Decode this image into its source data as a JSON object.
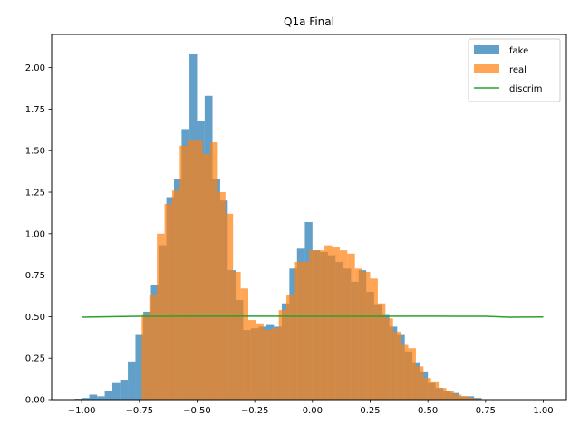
{
  "chart_data": {
    "type": "histogram",
    "title": "Q1a Final",
    "xlim": [
      -1.13,
      1.1
    ],
    "ylim": [
      0,
      2.2
    ],
    "x_ticks": [
      -1.0,
      -0.75,
      -0.5,
      -0.25,
      0.0,
      0.25,
      0.5,
      0.75,
      1.0
    ],
    "x_tick_labels": [
      "−1.00",
      "−0.75",
      "−0.50",
      "−0.25",
      "0.00",
      "0.25",
      "0.50",
      "0.75",
      "1.00"
    ],
    "y_ticks": [
      0.0,
      0.25,
      0.5,
      0.75,
      1.0,
      1.25,
      1.5,
      1.75,
      2.0
    ],
    "y_tick_labels": [
      "0.00",
      "0.25",
      "0.50",
      "0.75",
      "1.00",
      "1.25",
      "1.50",
      "1.75",
      "2.00"
    ],
    "legend": {
      "placement": "top-right"
    },
    "series": [
      {
        "name": "fake",
        "kind": "hist",
        "color": "#1f77b4",
        "opacity": 0.7,
        "bins": [
          {
            "x0": -1.03,
            "x1": -1.0,
            "y": 0.005
          },
          {
            "x0": -1.0,
            "x1": -0.967,
            "y": 0.01
          },
          {
            "x0": -0.967,
            "x1": -0.933,
            "y": 0.03
          },
          {
            "x0": -0.933,
            "x1": -0.9,
            "y": 0.02
          },
          {
            "x0": -0.9,
            "x1": -0.867,
            "y": 0.05
          },
          {
            "x0": -0.867,
            "x1": -0.833,
            "y": 0.1
          },
          {
            "x0": -0.833,
            "x1": -0.8,
            "y": 0.12
          },
          {
            "x0": -0.8,
            "x1": -0.767,
            "y": 0.23
          },
          {
            "x0": -0.767,
            "x1": -0.733,
            "y": 0.39
          },
          {
            "x0": -0.733,
            "x1": -0.7,
            "y": 0.53
          },
          {
            "x0": -0.7,
            "x1": -0.667,
            "y": 0.69
          },
          {
            "x0": -0.667,
            "x1": -0.633,
            "y": 0.93
          },
          {
            "x0": -0.633,
            "x1": -0.6,
            "y": 1.22
          },
          {
            "x0": -0.6,
            "x1": -0.567,
            "y": 1.33
          },
          {
            "x0": -0.567,
            "x1": -0.533,
            "y": 1.63
          },
          {
            "x0": -0.533,
            "x1": -0.5,
            "y": 2.08
          },
          {
            "x0": -0.5,
            "x1": -0.467,
            "y": 1.68
          },
          {
            "x0": -0.467,
            "x1": -0.433,
            "y": 1.83
          },
          {
            "x0": -0.433,
            "x1": -0.4,
            "y": 1.33
          },
          {
            "x0": -0.4,
            "x1": -0.367,
            "y": 1.2
          },
          {
            "x0": -0.367,
            "x1": -0.333,
            "y": 0.78
          },
          {
            "x0": -0.333,
            "x1": -0.3,
            "y": 0.6
          },
          {
            "x0": -0.3,
            "x1": -0.267,
            "y": 0.42
          },
          {
            "x0": -0.267,
            "x1": -0.233,
            "y": 0.43
          },
          {
            "x0": -0.233,
            "x1": -0.2,
            "y": 0.44
          },
          {
            "x0": -0.2,
            "x1": -0.167,
            "y": 0.45
          },
          {
            "x0": -0.167,
            "x1": -0.133,
            "y": 0.44
          },
          {
            "x0": -0.133,
            "x1": -0.1,
            "y": 0.58
          },
          {
            "x0": -0.1,
            "x1": -0.067,
            "y": 0.79
          },
          {
            "x0": -0.067,
            "x1": -0.033,
            "y": 0.91
          },
          {
            "x0": -0.033,
            "x1": 0.0,
            "y": 1.07
          },
          {
            "x0": 0.0,
            "x1": 0.033,
            "y": 0.9
          },
          {
            "x0": 0.033,
            "x1": 0.067,
            "y": 0.89
          },
          {
            "x0": 0.067,
            "x1": 0.1,
            "y": 0.87
          },
          {
            "x0": 0.1,
            "x1": 0.133,
            "y": 0.83
          },
          {
            "x0": 0.133,
            "x1": 0.167,
            "y": 0.79
          },
          {
            "x0": 0.167,
            "x1": 0.2,
            "y": 0.71
          },
          {
            "x0": 0.2,
            "x1": 0.233,
            "y": 0.78
          },
          {
            "x0": 0.233,
            "x1": 0.267,
            "y": 0.65
          },
          {
            "x0": 0.267,
            "x1": 0.3,
            "y": 0.57
          },
          {
            "x0": 0.3,
            "x1": 0.333,
            "y": 0.51
          },
          {
            "x0": 0.333,
            "x1": 0.367,
            "y": 0.44
          },
          {
            "x0": 0.367,
            "x1": 0.4,
            "y": 0.39
          },
          {
            "x0": 0.4,
            "x1": 0.433,
            "y": 0.29
          },
          {
            "x0": 0.433,
            "x1": 0.467,
            "y": 0.22
          },
          {
            "x0": 0.467,
            "x1": 0.5,
            "y": 0.17
          },
          {
            "x0": 0.5,
            "x1": 0.533,
            "y": 0.1
          },
          {
            "x0": 0.533,
            "x1": 0.567,
            "y": 0.07
          },
          {
            "x0": 0.567,
            "x1": 0.6,
            "y": 0.05
          },
          {
            "x0": 0.6,
            "x1": 0.633,
            "y": 0.04
          },
          {
            "x0": 0.633,
            "x1": 0.667,
            "y": 0.02
          },
          {
            "x0": 0.667,
            "x1": 0.7,
            "y": 0.02
          },
          {
            "x0": 0.7,
            "x1": 0.733,
            "y": 0.01
          }
        ]
      },
      {
        "name": "real",
        "kind": "hist",
        "color": "#ff7f0e",
        "opacity": 0.7,
        "bins": [
          {
            "x0": -0.74,
            "x1": -0.707,
            "y": 0.51
          },
          {
            "x0": -0.707,
            "x1": -0.674,
            "y": 0.63
          },
          {
            "x0": -0.674,
            "x1": -0.641,
            "y": 1.0
          },
          {
            "x0": -0.641,
            "x1": -0.608,
            "y": 1.18
          },
          {
            "x0": -0.608,
            "x1": -0.575,
            "y": 1.26
          },
          {
            "x0": -0.575,
            "x1": -0.542,
            "y": 1.53
          },
          {
            "x0": -0.542,
            "x1": -0.509,
            "y": 1.56
          },
          {
            "x0": -0.509,
            "x1": -0.476,
            "y": 1.56
          },
          {
            "x0": -0.476,
            "x1": -0.443,
            "y": 1.48
          },
          {
            "x0": -0.443,
            "x1": -0.41,
            "y": 1.55
          },
          {
            "x0": -0.41,
            "x1": -0.377,
            "y": 1.25
          },
          {
            "x0": -0.377,
            "x1": -0.344,
            "y": 1.12
          },
          {
            "x0": -0.344,
            "x1": -0.311,
            "y": 0.77
          },
          {
            "x0": -0.311,
            "x1": -0.278,
            "y": 0.67
          },
          {
            "x0": -0.278,
            "x1": -0.245,
            "y": 0.48
          },
          {
            "x0": -0.245,
            "x1": -0.212,
            "y": 0.46
          },
          {
            "x0": -0.212,
            "x1": -0.179,
            "y": 0.42
          },
          {
            "x0": -0.179,
            "x1": -0.146,
            "y": 0.43
          },
          {
            "x0": -0.146,
            "x1": -0.113,
            "y": 0.54
          },
          {
            "x0": -0.113,
            "x1": -0.08,
            "y": 0.63
          },
          {
            "x0": -0.08,
            "x1": -0.047,
            "y": 0.83
          },
          {
            "x0": -0.047,
            "x1": -0.014,
            "y": 0.83
          },
          {
            "x0": -0.014,
            "x1": 0.019,
            "y": 0.9
          },
          {
            "x0": 0.019,
            "x1": 0.052,
            "y": 0.9
          },
          {
            "x0": 0.052,
            "x1": 0.085,
            "y": 0.93
          },
          {
            "x0": 0.085,
            "x1": 0.118,
            "y": 0.92
          },
          {
            "x0": 0.118,
            "x1": 0.151,
            "y": 0.9
          },
          {
            "x0": 0.151,
            "x1": 0.184,
            "y": 0.88
          },
          {
            "x0": 0.184,
            "x1": 0.217,
            "y": 0.79
          },
          {
            "x0": 0.217,
            "x1": 0.25,
            "y": 0.77
          },
          {
            "x0": 0.25,
            "x1": 0.283,
            "y": 0.73
          },
          {
            "x0": 0.283,
            "x1": 0.316,
            "y": 0.58
          },
          {
            "x0": 0.316,
            "x1": 0.349,
            "y": 0.49
          },
          {
            "x0": 0.349,
            "x1": 0.382,
            "y": 0.41
          },
          {
            "x0": 0.382,
            "x1": 0.415,
            "y": 0.33
          },
          {
            "x0": 0.415,
            "x1": 0.448,
            "y": 0.31
          },
          {
            "x0": 0.448,
            "x1": 0.481,
            "y": 0.2
          },
          {
            "x0": 0.481,
            "x1": 0.514,
            "y": 0.13
          },
          {
            "x0": 0.514,
            "x1": 0.547,
            "y": 0.11
          },
          {
            "x0": 0.547,
            "x1": 0.58,
            "y": 0.07
          },
          {
            "x0": 0.58,
            "x1": 0.613,
            "y": 0.05
          },
          {
            "x0": 0.613,
            "x1": 0.646,
            "y": 0.03
          },
          {
            "x0": 0.646,
            "x1": 0.679,
            "y": 0.02
          },
          {
            "x0": 0.679,
            "x1": 0.712,
            "y": 0.01
          }
        ]
      },
      {
        "name": "discrim",
        "kind": "line",
        "color": "#2ca02c",
        "x": [
          -1.0,
          -0.75,
          -0.5,
          -0.25,
          0.0,
          0.25,
          0.5,
          0.75,
          0.85,
          1.0
        ],
        "y": [
          0.497,
          0.502,
          0.503,
          0.503,
          0.502,
          0.502,
          0.503,
          0.502,
          0.497,
          0.498
        ]
      }
    ]
  }
}
